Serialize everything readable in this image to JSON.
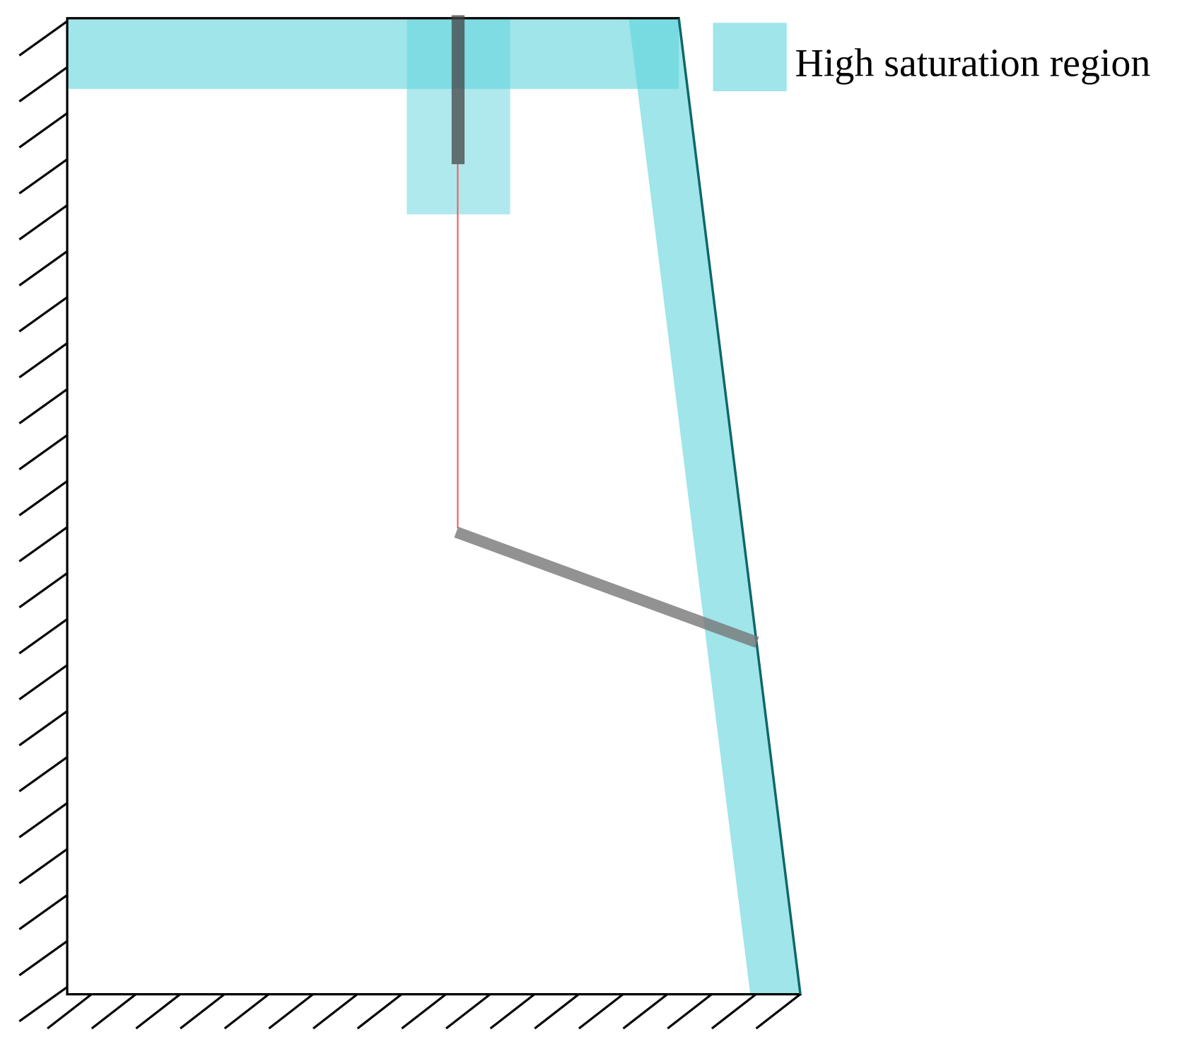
{
  "legend": {
    "label": "High saturation region"
  }
}
